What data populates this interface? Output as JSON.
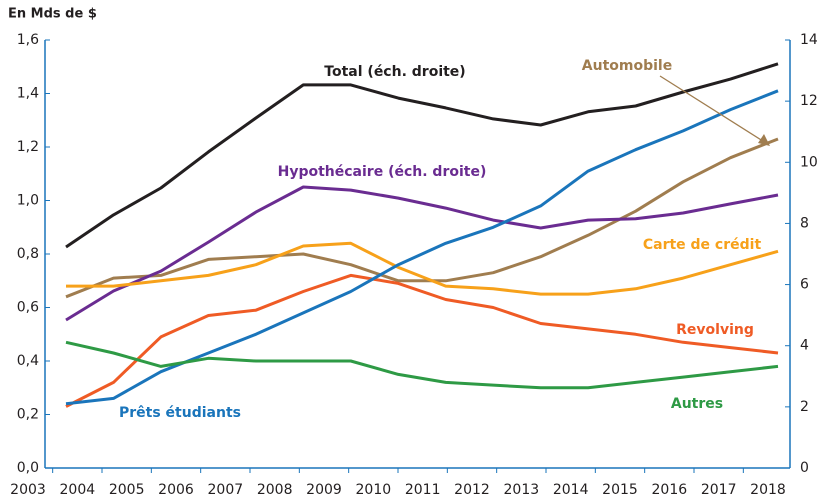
{
  "chart_data": {
    "type": "line",
    "y_axis_title": "En Mds de $",
    "categories": [
      "2003",
      "2004",
      "2005",
      "2006",
      "2007",
      "2008",
      "2009",
      "2010",
      "2011",
      "2012",
      "2013",
      "2014",
      "2015",
      "2016",
      "2017",
      "2018"
    ],
    "ylim": [
      0,
      1.6
    ],
    "yticks": [
      {
        "value": 0,
        "label": "0,0"
      },
      {
        "value": 0.2,
        "label": "0,2"
      },
      {
        "value": 0.4,
        "label": "0,4"
      },
      {
        "value": 0.6,
        "label": "0,6"
      },
      {
        "value": 0.8,
        "label": "0,8"
      },
      {
        "value": 1,
        "label": "1,0"
      },
      {
        "value": 1.2,
        "label": "1,2"
      },
      {
        "value": 1.4,
        "label": "1,4"
      },
      {
        "value": 1.6,
        "label": "1,6"
      }
    ],
    "y2lim": [
      0,
      14
    ],
    "y2ticks": [
      0,
      2,
      4,
      6,
      8,
      10,
      12,
      14
    ],
    "series": [
      {
        "name": "Total (éch. droite)",
        "color": "#231f20",
        "axis": "y2",
        "values": [
          7.23,
          8.28,
          9.16,
          10.34,
          11.45,
          12.53,
          12.53,
          12.1,
          11.78,
          11.42,
          11.22,
          11.65,
          11.84,
          12.3,
          12.72,
          13.22
        ]
      },
      {
        "name": "Automobile",
        "color": "#a07d4f",
        "values": [
          0.64,
          0.71,
          0.72,
          0.78,
          0.79,
          0.8,
          0.76,
          0.7,
          0.7,
          0.73,
          0.79,
          0.87,
          0.96,
          1.07,
          1.16,
          1.23
        ]
      },
      {
        "name": "Hypothécaire (éch. droite)",
        "color": "#6a2c91",
        "axis": "y2",
        "values": [
          4.84,
          5.79,
          6.44,
          7.39,
          8.37,
          9.19,
          9.09,
          8.83,
          8.5,
          8.11,
          7.85,
          8.11,
          8.15,
          8.34,
          8.64,
          8.93
        ]
      },
      {
        "name": "Carte de crédit",
        "color": "#f7a11a",
        "values": [
          0.68,
          0.68,
          0.7,
          0.72,
          0.76,
          0.83,
          0.84,
          0.75,
          0.68,
          0.67,
          0.65,
          0.65,
          0.67,
          0.71,
          0.76,
          0.81
        ]
      },
      {
        "name": "Revolving",
        "color": "#ef5b25",
        "values": [
          0.23,
          0.32,
          0.49,
          0.57,
          0.59,
          0.66,
          0.72,
          0.69,
          0.63,
          0.6,
          0.54,
          0.52,
          0.5,
          0.47,
          0.45,
          0.43
        ]
      },
      {
        "name": "Prêts étudiants",
        "color": "#1a75bb",
        "values": [
          0.24,
          0.26,
          0.36,
          0.43,
          0.5,
          0.58,
          0.66,
          0.76,
          0.84,
          0.9,
          0.98,
          1.11,
          1.19,
          1.26,
          1.34,
          1.41
        ]
      },
      {
        "name": "Autres",
        "color": "#2e9a45",
        "values": [
          0.47,
          0.43,
          0.38,
          0.41,
          0.4,
          0.4,
          0.4,
          0.35,
          0.32,
          0.31,
          0.3,
          0.3,
          0.32,
          0.34,
          0.36,
          0.38
        ]
      }
    ]
  }
}
